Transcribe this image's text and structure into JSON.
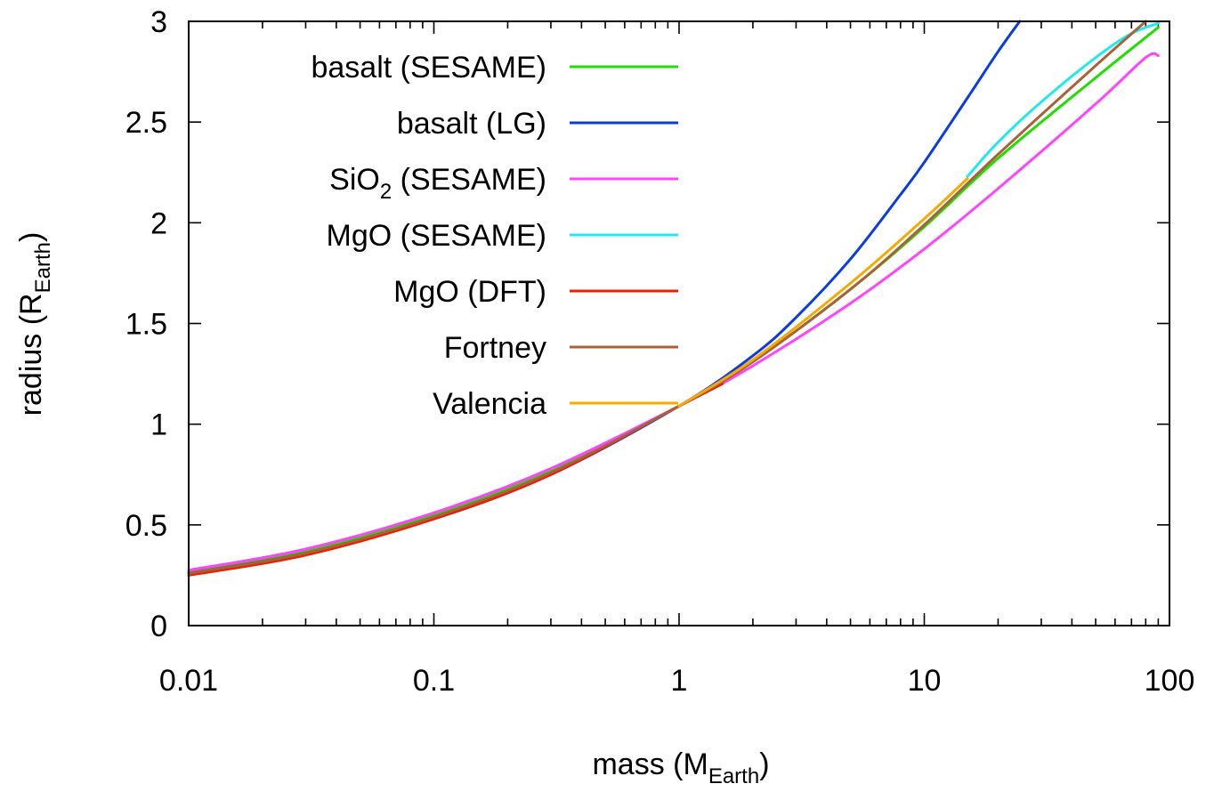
{
  "chart_data": {
    "type": "line",
    "x_scale": "log",
    "xlim": [
      0.01,
      100
    ],
    "ylim": [
      0,
      3
    ],
    "xlabel": {
      "main": "mass (M",
      "sub": "Earth",
      "close": ")"
    },
    "ylabel": {
      "main": "radius (R",
      "sub": "Earth",
      "close": ")"
    },
    "x_ticks": [
      {
        "value": 0.01,
        "label": "0.01"
      },
      {
        "value": 0.1,
        "label": "0.1"
      },
      {
        "value": 1,
        "label": "1"
      },
      {
        "value": 10,
        "label": "10"
      },
      {
        "value": 100,
        "label": "100"
      }
    ],
    "y_ticks": [
      {
        "value": 0,
        "label": "0"
      },
      {
        "value": 0.5,
        "label": "0.5"
      },
      {
        "value": 1,
        "label": "1"
      },
      {
        "value": 1.5,
        "label": "1.5"
      },
      {
        "value": 2,
        "label": "2"
      },
      {
        "value": 2.5,
        "label": "2.5"
      },
      {
        "value": 3,
        "label": "3"
      }
    ],
    "legend_position": "top-left",
    "series": [
      {
        "label": {
          "main": "basalt (SESAME)"
        },
        "color": "#22dd00",
        "x": [
          0.01,
          0.03,
          0.1,
          0.3,
          1,
          2,
          5,
          10,
          20,
          50,
          90
        ],
        "y": [
          0.27,
          0.37,
          0.55,
          0.77,
          1.09,
          1.31,
          1.67,
          1.98,
          2.32,
          2.72,
          2.97
        ]
      },
      {
        "label": {
          "main": "basalt (LG)"
        },
        "color": "#0a3ce0",
        "x": [
          0.01,
          0.03,
          0.1,
          0.3,
          1,
          2,
          3,
          5,
          8,
          10,
          15,
          20,
          24.5
        ],
        "y": [
          0.26,
          0.36,
          0.53,
          0.75,
          1.09,
          1.34,
          1.53,
          1.82,
          2.14,
          2.3,
          2.62,
          2.85,
          3.0
        ]
      },
      {
        "label": {
          "main": "SiO",
          "sub": "2",
          "rest": " (SESAME)"
        },
        "color": "#ff44ff",
        "x": [
          0.01,
          0.03,
          0.1,
          0.3,
          1,
          2,
          5,
          10,
          20,
          50,
          80,
          90
        ],
        "y": [
          0.275,
          0.38,
          0.56,
          0.78,
          1.09,
          1.29,
          1.6,
          1.87,
          2.17,
          2.59,
          2.82,
          2.83
        ]
      },
      {
        "label": {
          "main": "MgO (SESAME)"
        },
        "color": "#22e8f0",
        "x": [
          15,
          20,
          30,
          50,
          70,
          90
        ],
        "y": [
          2.23,
          2.4,
          2.6,
          2.82,
          2.94,
          2.99
        ]
      },
      {
        "label": {
          "main": "MgO (DFT)"
        },
        "color": "#e82000",
        "x": [
          0.01,
          0.03,
          0.1,
          0.3,
          1,
          1.5
        ],
        "y": [
          0.25,
          0.35,
          0.53,
          0.75,
          1.09,
          1.2
        ]
      },
      {
        "label": {
          "main": "Fortney"
        },
        "color": "#a8623a",
        "x": [
          0.01,
          0.03,
          0.1,
          0.3,
          1,
          2,
          5,
          10,
          20,
          50,
          80
        ],
        "y": [
          0.26,
          0.36,
          0.54,
          0.76,
          1.09,
          1.31,
          1.67,
          1.99,
          2.34,
          2.78,
          3.0
        ]
      },
      {
        "label": {
          "main": "Valencia"
        },
        "color": "#f5aa00",
        "x": [
          1,
          2,
          5,
          10,
          15
        ],
        "y": [
          1.09,
          1.32,
          1.7,
          2.02,
          2.22
        ]
      }
    ]
  }
}
